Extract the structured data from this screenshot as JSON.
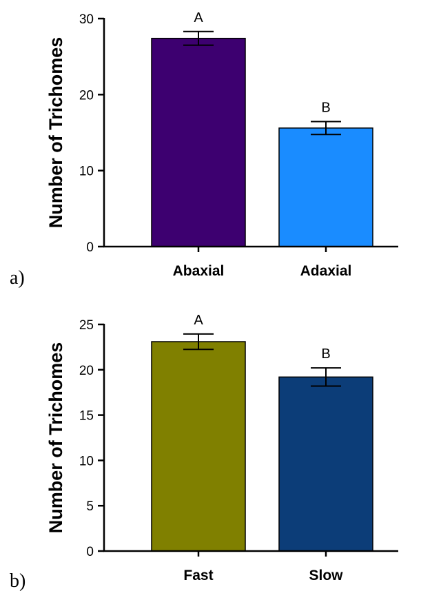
{
  "chart_data": [
    {
      "type": "bar",
      "panel_label": "a)",
      "ylabel": "Number of Trichomes",
      "xlabel": "",
      "categories": [
        "Abaxial",
        "Adaxial"
      ],
      "values": [
        27.4,
        15.6
      ],
      "errors": [
        0.9,
        0.85
      ],
      "significance": [
        "A",
        "B"
      ],
      "colors": [
        "#3d0070",
        "#1a8cff"
      ],
      "ylim": [
        0,
        30
      ],
      "yticks": [
        0,
        10,
        20,
        30
      ]
    },
    {
      "type": "bar",
      "panel_label": "b)",
      "ylabel": "Number of Trichomes",
      "xlabel": "",
      "categories": [
        "Fast",
        "Slow"
      ],
      "values": [
        23.1,
        19.2
      ],
      "errors": [
        0.85,
        1.0
      ],
      "significance": [
        "A",
        "B"
      ],
      "colors": [
        "#808000",
        "#0c3d78"
      ],
      "ylim": [
        0,
        25
      ],
      "yticks": [
        0,
        5,
        10,
        15,
        20,
        25
      ]
    }
  ]
}
